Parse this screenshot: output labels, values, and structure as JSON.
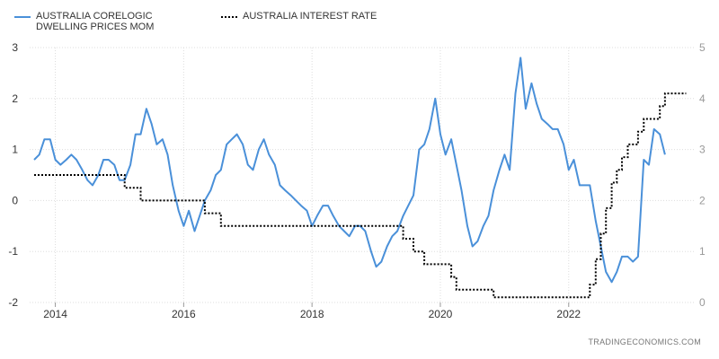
{
  "legend": {
    "series1": "AUSTRALIA CORELOGIC DWELLING PRICES MOM",
    "series2": "AUSTRALIA INTEREST RATE"
  },
  "credit": "TRADINGECONOMICS.COM",
  "colors": {
    "series1": "#4a90d9",
    "series2": "#000000",
    "grid": "#dddddd"
  },
  "chart_data": {
    "type": "line",
    "title": "",
    "xlabel": "",
    "ylabel": "",
    "xlim": [
      2013.6,
      2023.95
    ],
    "ylim_left": [
      -2,
      3
    ],
    "ylim_right": [
      0,
      5
    ],
    "x_ticks": [
      "2014",
      "2016",
      "2018",
      "2020",
      "2022"
    ],
    "y_ticks_left": [
      "3",
      "2",
      "1",
      "0",
      "-1",
      "-2"
    ],
    "y_ticks_right": [
      "5",
      "4",
      "3",
      "2",
      "1",
      "0"
    ],
    "grid": true,
    "legend_position": "top-left",
    "series": [
      {
        "name": "AUSTRALIA CORELOGIC DWELLING PRICES MOM",
        "axis": "left",
        "style": "solid",
        "x": [
          2013.67,
          2013.75,
          2013.83,
          2013.92,
          2014.0,
          2014.08,
          2014.17,
          2014.25,
          2014.33,
          2014.42,
          2014.5,
          2014.58,
          2014.67,
          2014.75,
          2014.83,
          2014.92,
          2015.0,
          2015.08,
          2015.17,
          2015.25,
          2015.33,
          2015.42,
          2015.5,
          2015.58,
          2015.67,
          2015.75,
          2015.83,
          2015.92,
          2016.0,
          2016.08,
          2016.17,
          2016.25,
          2016.33,
          2016.42,
          2016.5,
          2016.58,
          2016.67,
          2016.75,
          2016.83,
          2016.92,
          2017.0,
          2017.08,
          2017.17,
          2017.25,
          2017.33,
          2017.42,
          2017.5,
          2017.58,
          2017.67,
          2017.75,
          2017.83,
          2017.92,
          2018.0,
          2018.08,
          2018.17,
          2018.25,
          2018.33,
          2018.42,
          2018.5,
          2018.58,
          2018.67,
          2018.75,
          2018.83,
          2018.92,
          2019.0,
          2019.08,
          2019.17,
          2019.25,
          2019.33,
          2019.42,
          2019.5,
          2019.58,
          2019.67,
          2019.75,
          2019.83,
          2019.92,
          2020.0,
          2020.08,
          2020.17,
          2020.25,
          2020.33,
          2020.42,
          2020.5,
          2020.58,
          2020.67,
          2020.75,
          2020.83,
          2020.92,
          2021.0,
          2021.08,
          2021.17,
          2021.25,
          2021.33,
          2021.42,
          2021.5,
          2021.58,
          2021.67,
          2021.75,
          2021.83,
          2021.92,
          2022.0,
          2022.08,
          2022.17,
          2022.25,
          2022.33,
          2022.42,
          2022.5,
          2022.58,
          2022.67,
          2022.75,
          2022.83,
          2022.92,
          2023.0,
          2023.08,
          2023.17,
          2023.25,
          2023.33,
          2023.42,
          2023.5
        ],
        "values": [
          0.8,
          0.9,
          1.2,
          1.2,
          0.8,
          0.7,
          0.8,
          0.9,
          0.8,
          0.6,
          0.4,
          0.3,
          0.5,
          0.8,
          0.8,
          0.7,
          0.4,
          0.4,
          0.7,
          1.3,
          1.3,
          1.8,
          1.5,
          1.1,
          1.2,
          0.9,
          0.3,
          -0.2,
          -0.5,
          -0.2,
          -0.6,
          -0.3,
          0.0,
          0.2,
          0.5,
          0.6,
          1.1,
          1.2,
          1.3,
          1.1,
          0.7,
          0.6,
          1.0,
          1.2,
          0.9,
          0.7,
          0.3,
          0.2,
          0.1,
          0.0,
          -0.1,
          -0.2,
          -0.5,
          -0.3,
          -0.1,
          -0.1,
          -0.3,
          -0.5,
          -0.6,
          -0.7,
          -0.5,
          -0.5,
          -0.6,
          -1.0,
          -1.3,
          -1.2,
          -0.9,
          -0.7,
          -0.6,
          -0.3,
          -0.1,
          0.1,
          1.0,
          1.1,
          1.4,
          2.0,
          1.3,
          0.9,
          1.2,
          0.7,
          0.2,
          -0.5,
          -0.9,
          -0.8,
          -0.5,
          -0.3,
          0.2,
          0.6,
          0.9,
          0.6,
          2.1,
          2.8,
          1.8,
          2.3,
          1.9,
          1.6,
          1.5,
          1.4,
          1.4,
          1.1,
          0.6,
          0.8,
          0.3,
          0.3,
          0.3,
          -0.4,
          -0.9,
          -1.4,
          -1.6,
          -1.4,
          -1.1,
          -1.1,
          -1.2,
          -1.1,
          0.8,
          0.7,
          1.4,
          1.3,
          0.9
        ]
      },
      {
        "name": "AUSTRALIA INTEREST RATE",
        "axis": "right",
        "style": "dotted",
        "x": [
          2013.67,
          2015.08,
          2015.33,
          2016.33,
          2016.58,
          2019.42,
          2019.58,
          2019.75,
          2020.17,
          2020.25,
          2020.83,
          2022.33,
          2022.42,
          2022.5,
          2022.58,
          2022.67,
          2022.75,
          2022.83,
          2022.92,
          2023.0,
          2023.08,
          2023.17,
          2023.25,
          2023.42,
          2023.5,
          2023.83
        ],
        "values": [
          2.5,
          2.25,
          2.0,
          1.75,
          1.5,
          1.25,
          1.0,
          0.75,
          0.5,
          0.25,
          0.1,
          0.35,
          0.85,
          1.35,
          1.85,
          2.35,
          2.6,
          2.85,
          3.1,
          3.1,
          3.35,
          3.6,
          3.6,
          3.85,
          4.1,
          4.1
        ]
      }
    ]
  }
}
